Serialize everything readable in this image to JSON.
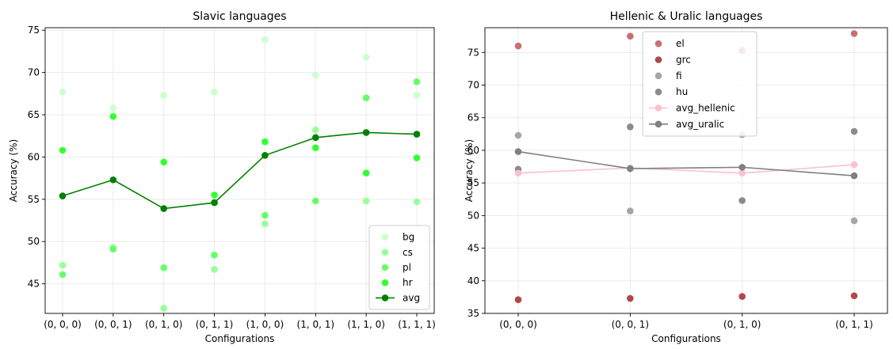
{
  "chart_data": [
    {
      "type": "scatter",
      "title": "Slavic languages",
      "xlabel": "Configurations",
      "ylabel": "Accuracy (%)",
      "categories": [
        "(0, 0, 0)",
        "(0, 0, 1)",
        "(0, 1, 0)",
        "(0, 1, 1)",
        "(1, 0, 0)",
        "(1, 0, 1)",
        "(1, 1, 0)",
        "(1, 1, 1)"
      ],
      "ylim": [
        41.5,
        75.3
      ],
      "yticks": [
        45,
        50,
        55,
        60,
        65,
        70,
        75
      ],
      "grid": true,
      "legend": "bottom-right",
      "series": [
        {
          "name": "bg",
          "color": "#ccffcc",
          "kind": "scatter",
          "values": [
            67.7,
            65.8,
            67.3,
            67.7,
            73.9,
            69.7,
            71.8,
            67.3
          ]
        },
        {
          "name": "cs",
          "color": "#99ff99",
          "kind": "scatter",
          "values": [
            47.2,
            49.3,
            42.1,
            46.7,
            52.1,
            63.2,
            54.8,
            54.7
          ]
        },
        {
          "name": "pl",
          "color": "#66ff66",
          "kind": "scatter",
          "values": [
            46.1,
            49.1,
            46.9,
            48.4,
            53.1,
            54.8,
            67.0,
            68.9
          ]
        },
        {
          "name": "hr",
          "color": "#33ff33",
          "kind": "scatter",
          "values": [
            60.8,
            64.8,
            59.4,
            55.5,
            61.8,
            61.1,
            58.1,
            59.9
          ]
        },
        {
          "name": "avg",
          "color": "#008000",
          "kind": "line",
          "values": [
            55.4,
            57.3,
            53.9,
            54.6,
            60.2,
            62.3,
            62.9,
            62.7
          ]
        }
      ]
    },
    {
      "type": "scatter",
      "title": "Hellenic & Uralic languages",
      "xlabel": "Configurations",
      "ylabel": "Accuracy (%)",
      "categories": [
        "(0, 0, 0)",
        "(0, 0, 1)",
        "(0, 1, 0)",
        "(0, 1, 1)"
      ],
      "ylim": [
        35,
        78.8
      ],
      "yticks": [
        35,
        40,
        45,
        50,
        55,
        60,
        65,
        70,
        75
      ],
      "grid": true,
      "legend": "top-center",
      "series": [
        {
          "name": "el",
          "color": "#c87070",
          "kind": "scatter",
          "values": [
            76.0,
            77.5,
            75.3,
            77.9
          ]
        },
        {
          "name": "grc",
          "color": "#b04848",
          "kind": "scatter",
          "values": [
            37.1,
            37.3,
            37.6,
            37.7
          ]
        },
        {
          "name": "fi",
          "color": "#a6a6a6",
          "kind": "scatter",
          "values": [
            62.3,
            50.7,
            62.4,
            49.2
          ]
        },
        {
          "name": "hu",
          "color": "#8c8c8c",
          "kind": "scatter",
          "values": [
            57.1,
            63.6,
            52.3,
            62.9
          ]
        },
        {
          "name": "avg_hellenic",
          "color": "#ffc0cb",
          "kind": "line",
          "values": [
            56.5,
            57.3,
            56.5,
            57.8
          ]
        },
        {
          "name": "avg_uralic",
          "color": "#808080",
          "kind": "line",
          "values": [
            59.8,
            57.2,
            57.4,
            56.1
          ]
        }
      ]
    }
  ]
}
